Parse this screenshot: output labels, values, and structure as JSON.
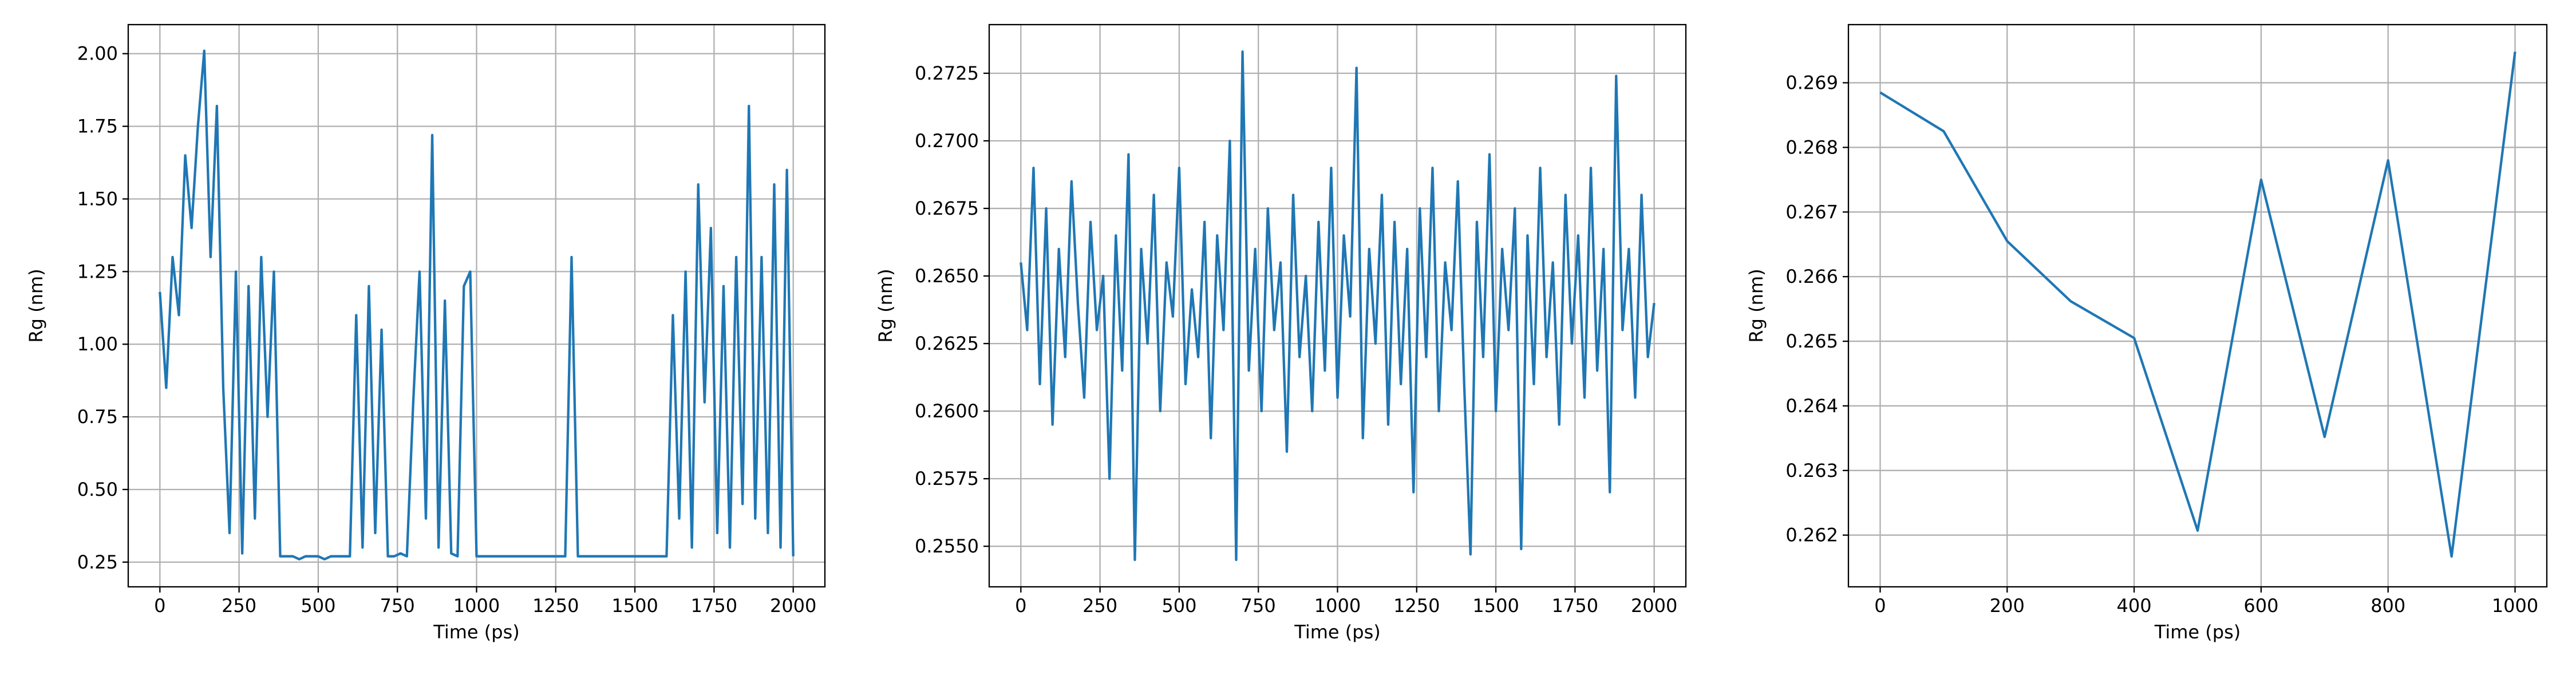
{
  "chart_data": [
    {
      "type": "line",
      "x_label": "Time (ps)",
      "y_label": "Rg (nm)",
      "color": "#1f77b4",
      "grid": true,
      "x": [
        0,
        20,
        40,
        60,
        80,
        100,
        120,
        140,
        160,
        180,
        200,
        220,
        240,
        260,
        280,
        300,
        320,
        340,
        360,
        380,
        400,
        420,
        440,
        460,
        480,
        500,
        520,
        540,
        560,
        580,
        600,
        620,
        640,
        660,
        680,
        700,
        720,
        740,
        760,
        780,
        800,
        820,
        840,
        860,
        880,
        900,
        920,
        940,
        960,
        980,
        1000,
        1020,
        1040,
        1060,
        1080,
        1100,
        1120,
        1140,
        1160,
        1180,
        1200,
        1220,
        1240,
        1260,
        1280,
        1300,
        1320,
        1340,
        1360,
        1380,
        1400,
        1420,
        1440,
        1460,
        1480,
        1500,
        1520,
        1540,
        1560,
        1580,
        1600,
        1620,
        1640,
        1660,
        1680,
        1700,
        1720,
        1740,
        1760,
        1780,
        1800,
        1820,
        1840,
        1860,
        1880,
        1900,
        1920,
        1940,
        1960,
        1980,
        2000
      ],
      "values": [
        1.18,
        0.85,
        1.3,
        1.1,
        1.65,
        1.4,
        1.75,
        2.01,
        1.3,
        1.82,
        0.85,
        0.35,
        1.25,
        0.28,
        1.2,
        0.4,
        1.3,
        0.75,
        1.25,
        0.27,
        0.27,
        0.27,
        0.26,
        0.27,
        0.27,
        0.27,
        0.26,
        0.27,
        0.27,
        0.27,
        0.27,
        1.1,
        0.3,
        1.2,
        0.35,
        1.05,
        0.27,
        0.27,
        0.28,
        0.27,
        0.8,
        1.25,
        0.4,
        1.72,
        0.3,
        1.15,
        0.28,
        0.27,
        1.2,
        1.25,
        0.27,
        0.27,
        0.27,
        0.27,
        0.27,
        0.27,
        0.27,
        0.27,
        0.27,
        0.27,
        0.27,
        0.27,
        0.27,
        0.27,
        0.27,
        1.3,
        0.27,
        0.27,
        0.27,
        0.27,
        0.27,
        0.27,
        0.27,
        0.27,
        0.27,
        0.27,
        0.27,
        0.27,
        0.27,
        0.27,
        0.27,
        1.1,
        0.4,
        1.25,
        0.3,
        1.55,
        0.8,
        1.4,
        0.35,
        1.2,
        0.3,
        1.3,
        0.45,
        1.82,
        0.4,
        1.3,
        0.35,
        1.55,
        0.3,
        1.6,
        0.27
      ],
      "xlim": [
        -100,
        2100
      ],
      "xticks": [
        0,
        250,
        500,
        750,
        1000,
        1250,
        1500,
        1750,
        2000
      ],
      "ylim": [
        0.165,
        2.1
      ],
      "yticks": [
        0.25,
        {
          "value": 0.5,
          "label": "0.50"
        },
        0.75,
        {
          "value": 1,
          "label": "1.00"
        },
        1.25,
        {
          "value": 1.5,
          "label": "1.50"
        },
        1.75,
        {
          "value": 2,
          "label": "2.00"
        }
      ]
    },
    {
      "type": "line",
      "x_label": "Time (ps)",
      "y_label": "Rg (nm)",
      "color": "#1f77b4",
      "grid": true,
      "x": [
        0,
        20,
        40,
        60,
        80,
        100,
        120,
        140,
        160,
        180,
        200,
        220,
        240,
        260,
        280,
        300,
        320,
        340,
        360,
        380,
        400,
        420,
        440,
        460,
        480,
        500,
        520,
        540,
        560,
        580,
        600,
        620,
        640,
        660,
        680,
        700,
        720,
        740,
        760,
        780,
        800,
        820,
        840,
        860,
        880,
        900,
        920,
        940,
        960,
        980,
        1000,
        1020,
        1040,
        1060,
        1080,
        1100,
        1120,
        1140,
        1160,
        1180,
        1200,
        1220,
        1240,
        1260,
        1280,
        1300,
        1320,
        1340,
        1360,
        1380,
        1400,
        1420,
        1440,
        1460,
        1480,
        1500,
        1520,
        1540,
        1560,
        1580,
        1600,
        1620,
        1640,
        1660,
        1680,
        1700,
        1720,
        1740,
        1760,
        1780,
        1800,
        1820,
        1840,
        1860,
        1880,
        1900,
        1920,
        1940,
        1960,
        1980,
        2000
      ],
      "values": [
        0.2655,
        0.263,
        0.269,
        0.261,
        0.2675,
        0.2595,
        0.266,
        0.262,
        0.2685,
        0.264,
        0.2605,
        0.267,
        0.263,
        0.265,
        0.2575,
        0.2665,
        0.2615,
        0.2695,
        0.2545,
        0.266,
        0.2625,
        0.268,
        0.26,
        0.2655,
        0.2635,
        0.269,
        0.261,
        0.2645,
        0.262,
        0.267,
        0.259,
        0.2665,
        0.263,
        0.27,
        0.2545,
        0.2733,
        0.2615,
        0.266,
        0.26,
        0.2675,
        0.263,
        0.2655,
        0.2585,
        0.268,
        0.262,
        0.265,
        0.26,
        0.267,
        0.2615,
        0.269,
        0.2605,
        0.2665,
        0.2635,
        0.2727,
        0.259,
        0.266,
        0.2625,
        0.268,
        0.2595,
        0.267,
        0.261,
        0.266,
        0.257,
        0.2675,
        0.262,
        0.269,
        0.26,
        0.2655,
        0.263,
        0.2685,
        0.261,
        0.2547,
        0.267,
        0.262,
        0.2695,
        0.26,
        0.266,
        0.263,
        0.2675,
        0.2549,
        0.2665,
        0.261,
        0.269,
        0.262,
        0.2655,
        0.2595,
        0.268,
        0.2625,
        0.2665,
        0.2605,
        0.269,
        0.2615,
        0.266,
        0.257,
        0.2724,
        0.263,
        0.266,
        0.2605,
        0.268,
        0.262,
        0.264
      ],
      "xlim": [
        -100,
        2100
      ],
      "xticks": [
        0,
        250,
        500,
        750,
        1000,
        1250,
        1500,
        1750,
        2000
      ],
      "ylim": [
        0.2535,
        0.2743
      ],
      "yticks": [
        {
          "value": 0.255,
          "label": "0.2550"
        },
        0.2575,
        {
          "value": 0.26,
          "label": "0.2600"
        },
        0.2625,
        {
          "value": 0.265,
          "label": "0.2650"
        },
        0.2675,
        {
          "value": 0.27,
          "label": "0.2700"
        },
        0.2725
      ]
    },
    {
      "type": "line",
      "x_label": "Time (ps)",
      "y_label": "Rg (nm)",
      "color": "#1f77b4",
      "grid": true,
      "x": [
        0,
        100,
        200,
        300,
        400,
        500,
        600,
        700,
        800,
        900,
        1000
      ],
      "values": [
        0.26885,
        0.26825,
        0.26655,
        0.26562,
        0.26505,
        0.26207,
        0.2675,
        0.26352,
        0.2678,
        0.26167,
        0.26948
      ],
      "xlim": [
        -50,
        1050
      ],
      "xticks": [
        0,
        200,
        400,
        600,
        800,
        1000
      ],
      "ylim": [
        0.2612,
        0.2699
      ],
      "yticks": [
        0.262,
        0.263,
        0.264,
        0.265,
        0.266,
        0.267,
        0.268,
        0.269
      ]
    }
  ]
}
